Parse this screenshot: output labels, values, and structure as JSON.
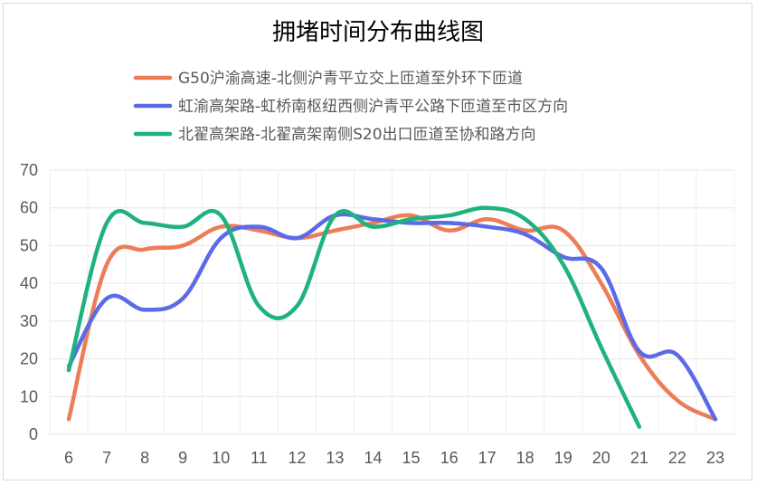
{
  "chart_data": {
    "type": "line",
    "title": "拥堵时间分布曲线图",
    "xlabel": "",
    "ylabel": "",
    "legend_position": "top",
    "grid": true,
    "ylim": [
      0,
      70
    ],
    "y_ticks": [
      0,
      10,
      20,
      30,
      40,
      50,
      60,
      70
    ],
    "x_ticks": [
      6,
      7,
      8,
      9,
      10,
      11,
      12,
      13,
      14,
      15,
      16,
      17,
      18,
      19,
      20,
      21,
      22,
      23
    ],
    "series": [
      {
        "name": "G50沪渝高速-北侧沪青平立交上匝道至外环下匝道",
        "color": "#ed7d57",
        "x": [
          6,
          7,
          8,
          9,
          10,
          11,
          12,
          13,
          14,
          15,
          16,
          17,
          18,
          19,
          20,
          21,
          22,
          23
        ],
        "values": [
          4,
          45,
          49,
          50,
          55,
          54,
          52,
          54,
          56,
          58,
          54,
          57,
          54,
          54,
          40,
          21,
          9,
          4
        ]
      },
      {
        "name": "虹渝高架路-虹桥南枢纽西侧沪青平公路下匝道至市区方向",
        "color": "#5b6ae6",
        "x": [
          6,
          7,
          8,
          9,
          10,
          11,
          12,
          13,
          14,
          15,
          16,
          17,
          18,
          19,
          20,
          21,
          22,
          23
        ],
        "values": [
          18,
          36,
          33,
          36,
          52,
          55,
          52,
          58,
          57,
          56,
          56,
          55,
          53,
          47,
          44,
          22,
          21,
          4
        ]
      },
      {
        "name": "北翟高架路-北翟高架南侧S20出口匝道至协和路方向",
        "color": "#1fb27e",
        "x": [
          6,
          7,
          8,
          9,
          10,
          11,
          12,
          13,
          14,
          15,
          16,
          17,
          18,
          19,
          20,
          21
        ],
        "values": [
          17,
          56,
          56,
          55,
          58,
          34,
          34,
          58,
          55,
          57,
          58,
          60,
          57,
          45,
          23,
          2
        ]
      }
    ]
  }
}
